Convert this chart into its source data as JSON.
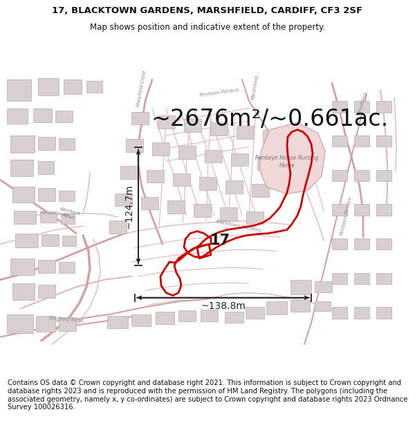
{
  "title_line1": "17, BLACKTOWN GARDENS, MARSHFIELD, CARDIFF, CF3 2SF",
  "title_line2": "Map shows position and indicative extent of the property.",
  "area_text": "~2676m²/~0.661ac.",
  "label_17": "17",
  "dim_vertical": "~124.7m",
  "dim_horizontal": "~138.8m",
  "footer_text": "Contains OS data © Crown copyright and database right 2021. This information is subject to Crown copyright and database rights 2023 and is reproduced with the permission of HM Land Registry. The polygons (including the associated geometry, namely x, y co-ordinates) are subject to Crown copyright and database rights 2023 Ordnance Survey 100026316.",
  "bg_color": "#ffffff",
  "map_bg_color": "#f5efef",
  "road_color_main": "#d4a0a0",
  "road_color_minor": "#e0b8b8",
  "building_fill": "#d8d0d0",
  "building_edge": "#c0a8a8",
  "nursing_fill": "#f0d8d8",
  "nursing_edge": "#c8a0a0",
  "boundary_color": "#cc0000",
  "arrow_color": "#222222",
  "label_color": "#888888",
  "title_fontsize": 9.5,
  "subtitle_fontsize": 8.5,
  "area_fontsize": 24,
  "label_fontsize": 15,
  "dim_fontsize": 10,
  "footer_fontsize": 7.2,
  "street_label_fontsize": 5.0,
  "fig_width": 6.0,
  "fig_height": 6.25,
  "dpi": 100
}
